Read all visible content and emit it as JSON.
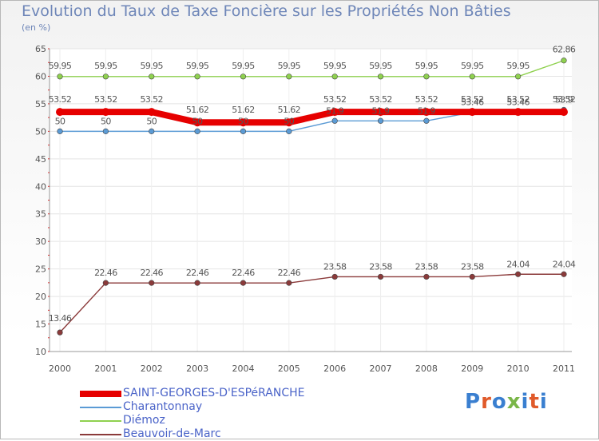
{
  "header": {
    "title": "Evolution du Taux de Taxe Foncière sur les Propriétés Non Bâties",
    "unit": "(en %)"
  },
  "logo": {
    "text": "Proxiti",
    "colors": [
      "#3a7fd0",
      "#e05a2a",
      "#3a7fd0",
      "#7ab648",
      "#3a7fd0",
      "#e05a2a",
      "#3a7fd0"
    ]
  },
  "chart_data": {
    "type": "line",
    "title": "Evolution du Taux de Taxe Foncière sur les Propriétés Non Bâties",
    "ylabel": "(en %)",
    "xlabel": "",
    "x": [
      "2000",
      "2001",
      "2002",
      "2003",
      "2004",
      "2005",
      "2006",
      "2007",
      "2008",
      "2009",
      "2010",
      "2011"
    ],
    "ylim": [
      10,
      65
    ],
    "yticks": [
      10,
      15,
      20,
      25,
      30,
      35,
      40,
      45,
      50,
      55,
      60,
      65
    ],
    "grid": true,
    "legend_position": "bottom-left",
    "series": [
      {
        "name": "SAINT-GEORGES-D'ESPéRANCHE",
        "color": "#e60000",
        "values": [
          53.52,
          53.52,
          53.52,
          51.62,
          51.62,
          51.62,
          53.52,
          53.52,
          53.52,
          53.52,
          53.52,
          53.52
        ],
        "labels": [
          "53.52",
          "53.52",
          "53.52",
          "51.62",
          "51.62",
          "51.62",
          "53.52",
          "53.52",
          "53.52",
          "53.52",
          "53.52",
          "53.52"
        ]
      },
      {
        "name": "Charantonnay",
        "color": "#5b9bd5",
        "values": [
          50,
          50,
          50,
          50,
          50,
          50,
          51.9,
          51.9,
          51.9,
          53.46,
          53.46,
          53.9
        ],
        "labels": [
          "50",
          "50",
          "50",
          "50",
          "50",
          "50",
          "51.9",
          "51.9",
          "51.9",
          "53.46",
          "53.46",
          "53.9"
        ]
      },
      {
        "name": "Diémoz",
        "color": "#8fd14f",
        "values": [
          59.95,
          59.95,
          59.95,
          59.95,
          59.95,
          59.95,
          59.95,
          59.95,
          59.95,
          59.95,
          59.95,
          62.86
        ],
        "labels": [
          "59.95",
          "59.95",
          "59.95",
          "59.95",
          "59.95",
          "59.95",
          "59.95",
          "59.95",
          "59.95",
          "59.95",
          "59.95",
          "62.86"
        ]
      },
      {
        "name": "Beauvoir-de-Marc",
        "color": "#8b3a3a",
        "values": [
          13.46,
          22.46,
          22.46,
          22.46,
          22.46,
          22.46,
          23.58,
          23.58,
          23.58,
          23.58,
          24.04,
          24.04
        ],
        "labels": [
          "13.46",
          "22.46",
          "22.46",
          "22.46",
          "22.46",
          "22.46",
          "23.58",
          "23.58",
          "23.58",
          "23.58",
          "24.04",
          "24.04"
        ]
      }
    ]
  }
}
